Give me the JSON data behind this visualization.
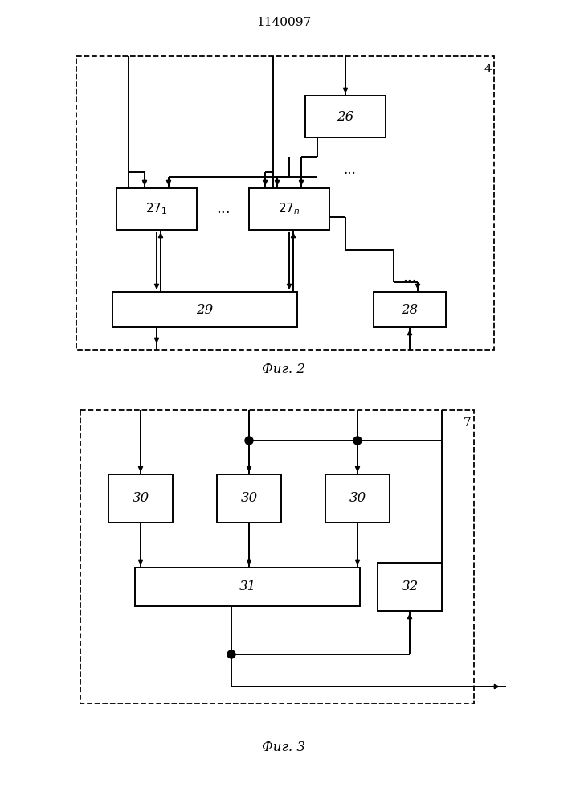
{
  "title": "1140097",
  "fig2_caption": "Фиг. 2",
  "fig3_caption": "Фиг. 3",
  "bg_color": "#ffffff",
  "line_color": "#000000",
  "lw": 1.4
}
